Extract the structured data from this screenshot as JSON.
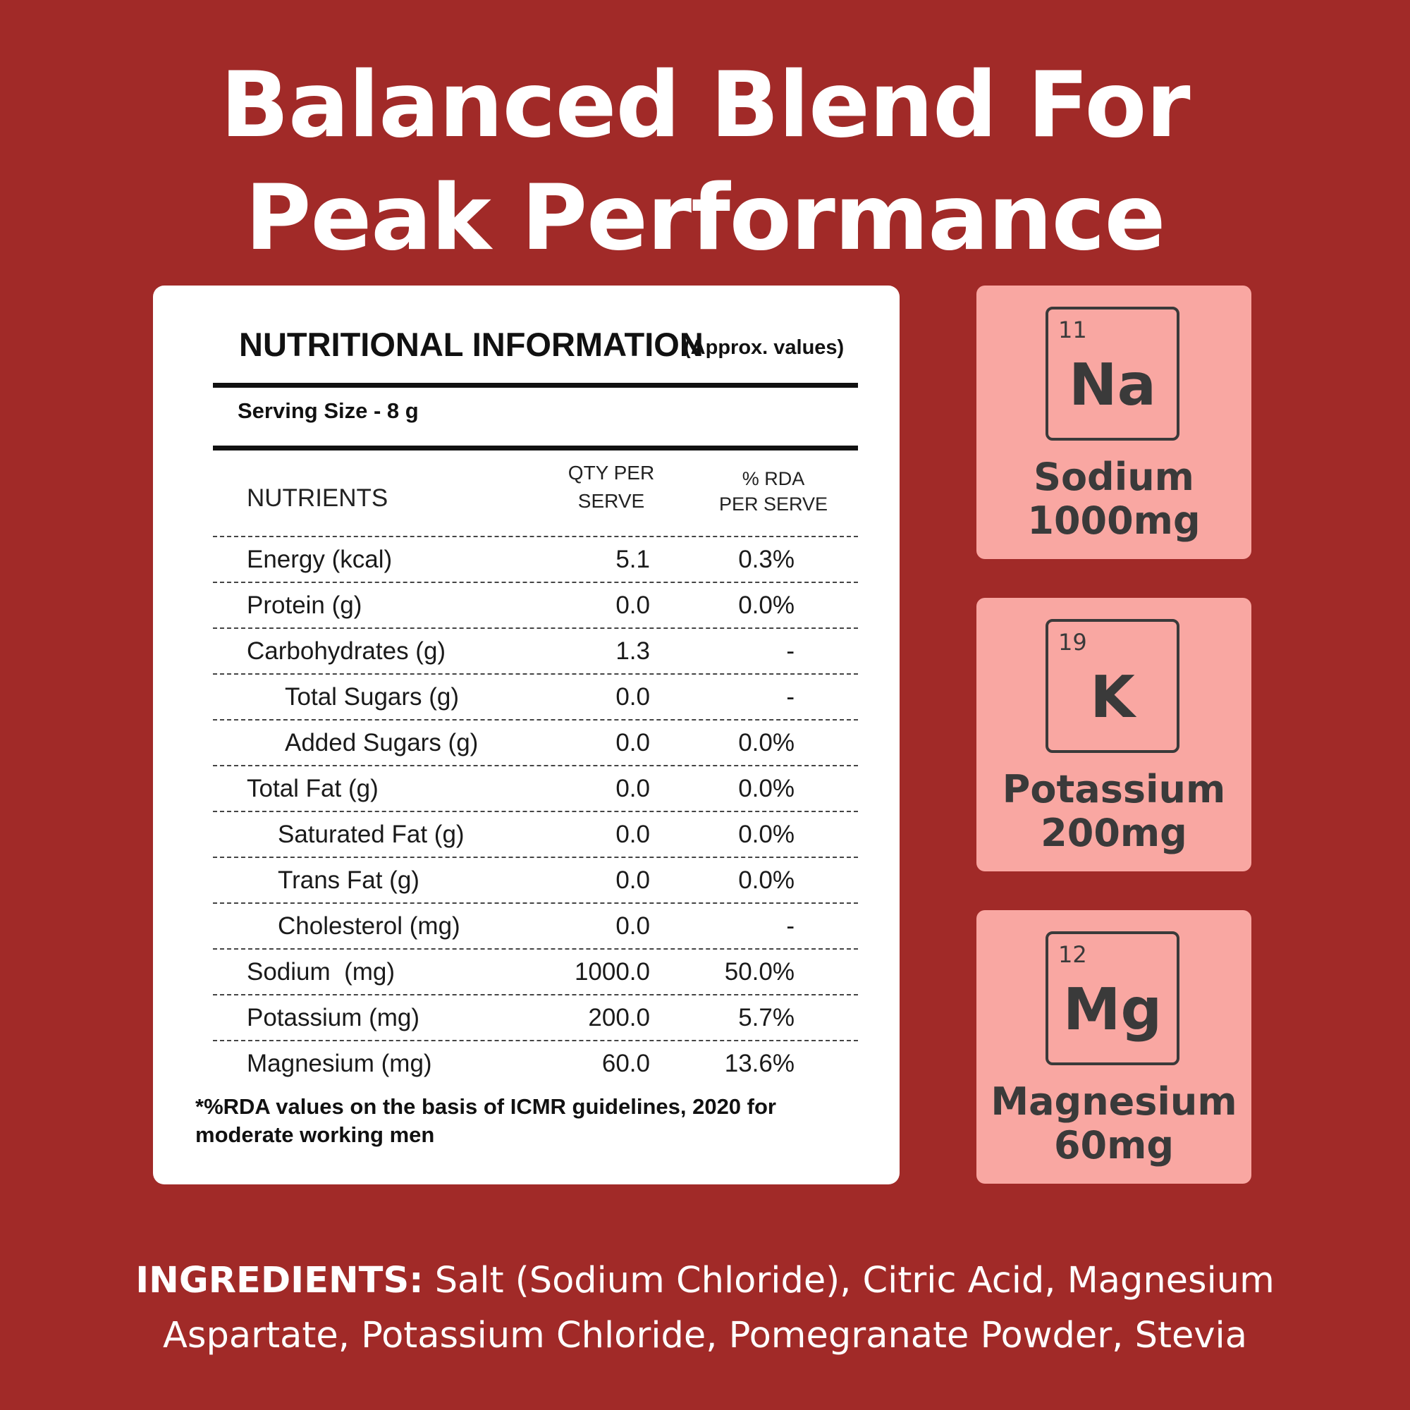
{
  "headline": {
    "line1": "Balanced Blend For",
    "line2": "Peak Performance"
  },
  "nutrition": {
    "title": "NUTRITIONAL INFORMATION",
    "approx": "(Approx. values)",
    "serving_size": "Serving Size - 8 g",
    "columns": {
      "nutrients": "NUTRIENTS",
      "qty_line1": "QTY PER",
      "qty_line2": "SERVE",
      "rda_line1": "% RDA",
      "rda_line2": "PER SERVE"
    },
    "rows": [
      {
        "name": "Energy (kcal)",
        "qty": "5.1",
        "rda": "0.3%"
      },
      {
        "name": "Protein (g)",
        "qty": "0.0",
        "rda": "0.0%"
      },
      {
        "name": "Carbohydrates (g)",
        "qty": "1.3",
        "rda": "-"
      },
      {
        "name": "Total Sugars (g)",
        "qty": "0.0",
        "rda": "-"
      },
      {
        "name": "Added Sugars (g)",
        "qty": "0.0",
        "rda": "0.0%"
      },
      {
        "name": "Total Fat (g)",
        "qty": "0.0",
        "rda": "0.0%"
      },
      {
        "name": "Saturated Fat (g)",
        "qty": "0.0",
        "rda": "0.0%"
      },
      {
        "name": "Trans Fat (g)",
        "qty": "0.0",
        "rda": "0.0%"
      },
      {
        "name": "Cholesterol (mg)",
        "qty": "0.0",
        "rda": "-"
      },
      {
        "name": "Sodium  (mg)",
        "qty": "1000.0",
        "rda": "50.0%"
      },
      {
        "name": "Potassium (mg)",
        "qty": "200.0",
        "rda": "5.7%"
      },
      {
        "name": "Magnesium (mg)",
        "qty": "60.0",
        "rda": "13.6%"
      }
    ],
    "footnote": "*%RDA values on the basis of ICMR guidelines, 2020 for moderate working men"
  },
  "elements": [
    {
      "number": "11",
      "symbol": "Na",
      "name": "Sodium",
      "amount": "1000mg"
    },
    {
      "number": "19",
      "symbol": "K",
      "name": "Potassium",
      "amount": "200mg"
    },
    {
      "number": "12",
      "symbol": "Mg",
      "name": "Magnesium",
      "amount": "60mg"
    }
  ],
  "ingredients": {
    "label": "INGREDIENTS:",
    "text_line1": " Salt (Sodium Chloride), Citric Acid, Magnesium",
    "text_line2": "Aspartate, Potassium Chloride, Pomegranate Powder, Stevia"
  },
  "colors": {
    "background": "#a12a28",
    "card": "#ffffff",
    "element_card": "#f9a7a2",
    "element_text": "#3a3a3a"
  }
}
